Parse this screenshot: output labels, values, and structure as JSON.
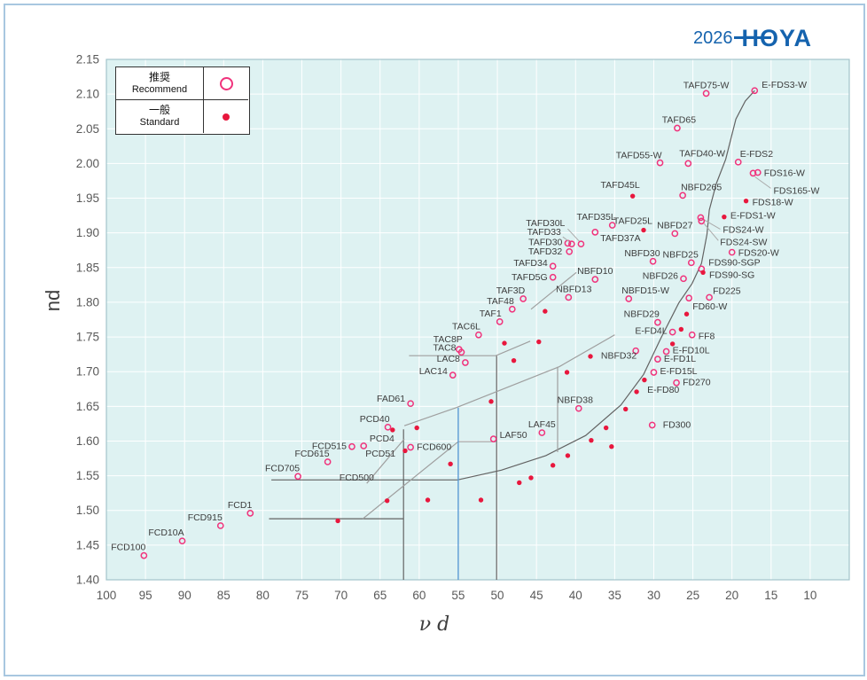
{
  "header": {
    "year": "2026",
    "brand": "HOYA"
  },
  "legend": {
    "recommend_jp": "推奨",
    "recommend_en": "Recommend",
    "standard_jp": "一般",
    "standard_en": "Standard"
  },
  "chart_data": {
    "type": "scatter",
    "xlabel": "ν d",
    "ylabel": "nd",
    "x_axis": {
      "ticks": [
        100,
        95,
        90,
        85,
        80,
        75,
        70,
        65,
        60,
        55,
        50,
        45,
        40,
        35,
        30,
        25,
        20,
        15,
        10
      ],
      "reversed": true,
      "frame_min": 5,
      "frame_max": 100
    },
    "y_axis": {
      "min": 1.4,
      "max": 2.15,
      "step": 0.05
    },
    "grid": true,
    "colors": {
      "plot_bg": "#def2f2",
      "grid": "#ffffff",
      "frame": "#a3c4cb",
      "open": "#f0337c",
      "filled": "#e8173d",
      "dark_line": "#636363",
      "gray_line": "#9f9f9f",
      "blue_line": "#5b9bd5",
      "label": "#3c3c3c",
      "tick": "#595959"
    },
    "series": [
      {
        "name": "Recommend",
        "marker": "open-circle"
      },
      {
        "name": "Standard",
        "marker": "filled-dot"
      }
    ],
    "points": [
      {
        "l": "FCD100",
        "nu": 95.2,
        "nd": 1.435,
        "s": "o",
        "side": "above-left"
      },
      {
        "l": "FCD10A",
        "nu": 90.3,
        "nd": 1.456,
        "s": "o",
        "side": "above-left"
      },
      {
        "l": "FCD915",
        "nu": 85.4,
        "nd": 1.478,
        "s": "o",
        "side": "above-left"
      },
      {
        "l": "FCD1",
        "nu": 81.6,
        "nd": 1.496,
        "s": "o",
        "side": "above-left"
      },
      {
        "l": "FCD705",
        "nu": 75.5,
        "nd": 1.549,
        "s": "o",
        "side": "above-left"
      },
      {
        "l": "FCD615",
        "nu": 71.7,
        "nd": 1.57,
        "s": "o",
        "side": "above-left"
      },
      {
        "l": "FCD515",
        "nu": 68.6,
        "nd": 1.592,
        "s": "o",
        "side": "left"
      },
      {
        "l": "PCD51",
        "nu": 67.1,
        "nd": 1.593,
        "s": "o",
        "side": "below-right"
      },
      {
        "l": "PCD4",
        "nu": 63.4,
        "nd": 1.616,
        "s": "f",
        "side": "below-left"
      },
      {
        "l": "PCD40",
        "nu": 64.0,
        "nd": 1.62,
        "s": "o",
        "side": "above-left"
      },
      {
        "l": "FAD61",
        "nu": 61.1,
        "nd": 1.654,
        "s": "o",
        "side": "left",
        "ly": -2
      },
      {
        "l": "FCD600",
        "nu": 61.1,
        "nd": 1.591,
        "s": "o",
        "side": "right"
      },
      {
        "l": "FCD500",
        "nu": 71.0,
        "nd": 1.547,
        "s": "none",
        "side": "right"
      },
      {
        "l": "LAC14",
        "nu": 55.7,
        "nd": 1.695,
        "s": "o",
        "side": "left",
        "ly": -1
      },
      {
        "l": "LAC8",
        "nu": 54.1,
        "nd": 1.713,
        "s": "o",
        "side": "left",
        "ly": -1
      },
      {
        "l": "TAC8P",
        "nu": 54.9,
        "nd": 1.732,
        "s": "o",
        "an": "end",
        "lx": 4,
        "ly": -8
      },
      {
        "l": "TAC8",
        "nu": 54.6,
        "nd": 1.728,
        "s": "o",
        "side": "left",
        "ly": -2
      },
      {
        "l": "TAC6L",
        "nu": 52.4,
        "nd": 1.753,
        "s": "o",
        "side": "above-left"
      },
      {
        "l": "TAF1",
        "nu": 49.7,
        "nd": 1.772,
        "s": "o",
        "side": "above-left"
      },
      {
        "l": "TAF48",
        "nu": 48.1,
        "nd": 1.79,
        "s": "o",
        "side": "above-left"
      },
      {
        "l": "TAF3D",
        "nu": 46.7,
        "nd": 1.805,
        "s": "o",
        "side": "above-left"
      },
      {
        "l": "TAFD5G",
        "nu": 42.9,
        "nd": 1.836,
        "s": "o",
        "side": "left"
      },
      {
        "l": "TAFD34",
        "nu": 42.9,
        "nd": 1.852,
        "s": "o",
        "side": "left",
        "ly": 0
      },
      {
        "l": "TAFD32",
        "nu": 40.8,
        "nd": 1.873,
        "s": "o",
        "side": "left",
        "lx": -8
      },
      {
        "l": "TAFD30",
        "nu": 41.0,
        "nd": 1.885,
        "s": "o",
        "side": "left",
        "ly": 2
      },
      {
        "l": "TAFD33",
        "nu": 40.5,
        "nd": 1.884,
        "s": "o",
        "an": "end",
        "lx": -12,
        "ly": -10,
        "leader": [
          -10,
          -8,
          -2,
          -2
        ]
      },
      {
        "l": "TAFD30L",
        "nu": 39.3,
        "nd": 1.884,
        "s": "o",
        "an": "end",
        "lx": -18,
        "ly": -20,
        "leader": [
          -15,
          -17,
          -2,
          -3
        ]
      },
      {
        "l": "TAFD35L",
        "nu": 35.3,
        "nd": 1.911,
        "s": "o",
        "side": "above-left",
        "lx": 4
      },
      {
        "l": "TAFD37A",
        "nu": 37.5,
        "nd": 1.901,
        "s": "o",
        "side": "below-right",
        "lx": 6,
        "ly": 10
      },
      {
        "l": "TAFD45L",
        "nu": 32.7,
        "nd": 1.953,
        "s": "f",
        "side": "above-left",
        "lx": 8,
        "ly": -9
      },
      {
        "l": "TAFD25L",
        "nu": 31.3,
        "nd": 1.904,
        "s": "f",
        "side": "above-left",
        "lx": 10,
        "ly": -7
      },
      {
        "l": "NBFD265",
        "nu": 26.3,
        "nd": 1.954,
        "s": "o",
        "side": "above-right"
      },
      {
        "l": "NBFD27",
        "nu": 27.3,
        "nd": 1.899,
        "s": "o",
        "side": "above"
      },
      {
        "l": "NBFD30",
        "nu": 30.1,
        "nd": 1.859,
        "s": "o",
        "side": "above-left",
        "lx": 8
      },
      {
        "l": "NBFD25",
        "nu": 25.2,
        "nd": 1.857,
        "s": "o",
        "side": "above-left",
        "lx": 8
      },
      {
        "l": "FDS90-SGP",
        "nu": 23.9,
        "nd": 1.848,
        "s": "o",
        "an": "start",
        "lx": 8,
        "ly": -4
      },
      {
        "l": "FDS90-SG",
        "nu": 23.7,
        "nd": 1.843,
        "s": "f",
        "side": "right",
        "ly": 6
      },
      {
        "l": "NBFD26",
        "nu": 26.2,
        "nd": 1.834,
        "s": "o",
        "side": "left",
        "ly": 0
      },
      {
        "l": "NBFD10",
        "nu": 37.5,
        "nd": 1.833,
        "s": "o",
        "side": "above"
      },
      {
        "l": "NBFD13",
        "nu": 40.9,
        "nd": 1.807,
        "s": "o",
        "side": "above",
        "lx": 6
      },
      {
        "l": "NBFD15-W",
        "nu": 33.2,
        "nd": 1.805,
        "s": "o",
        "side": "above-right",
        "lx": -8
      },
      {
        "l": "NBFD29",
        "nu": 29.5,
        "nd": 1.771,
        "s": "o",
        "side": "above-left",
        "lx": 2
      },
      {
        "l": "E-FD4L",
        "nu": 27.6,
        "nd": 1.757,
        "s": "o",
        "side": "left",
        "ly": 2
      },
      {
        "l": "FF8",
        "nu": 25.1,
        "nd": 1.753,
        "s": "o",
        "side": "right",
        "ly": 5
      },
      {
        "l": "FD60-W",
        "nu": 25.5,
        "nd": 1.806,
        "s": "o",
        "side": "below-right",
        "lx": 4,
        "ly": 13
      },
      {
        "l": "FD225",
        "nu": 22.9,
        "nd": 1.807,
        "s": "o",
        "side": "above-right",
        "lx": 4,
        "ly": -4
      },
      {
        "l": "E-FD10L",
        "nu": 28.4,
        "nd": 1.729,
        "s": "o",
        "side": "right",
        "ly": 2
      },
      {
        "l": "E-FD1L",
        "nu": 29.5,
        "nd": 1.718,
        "s": "o",
        "side": "right",
        "ly": 3
      },
      {
        "l": "E-FD15L",
        "nu": 30.0,
        "nd": 1.699,
        "s": "o",
        "side": "right",
        "ly": 2
      },
      {
        "l": "FD270",
        "nu": 27.1,
        "nd": 1.684,
        "s": "o",
        "side": "right",
        "ly": 3
      },
      {
        "l": "E-FD80",
        "nu": 32.2,
        "nd": 1.671,
        "s": "f",
        "side": "right",
        "lx": 12,
        "ly": 1
      },
      {
        "l": "NBFD32",
        "nu": 32.3,
        "nd": 1.73,
        "s": "o",
        "an": "end",
        "lx": 1,
        "ly": 9
      },
      {
        "l": "NBFD38",
        "nu": 39.6,
        "nd": 1.647,
        "s": "o",
        "side": "above",
        "lx": -4
      },
      {
        "l": "FD300",
        "nu": 30.2,
        "nd": 1.623,
        "s": "o",
        "side": "right",
        "lx": 12,
        "ly": 3
      },
      {
        "l": "LAF45",
        "nu": 44.3,
        "nd": 1.612,
        "s": "o",
        "side": "above"
      },
      {
        "l": "LAF50",
        "nu": 50.5,
        "nd": 1.603,
        "s": "o",
        "side": "right",
        "ly": -1
      },
      {
        "l": "TAFD55-W",
        "nu": 29.2,
        "nd": 2.001,
        "s": "o",
        "side": "above-left",
        "lx": 2,
        "ly": -5
      },
      {
        "l": "TAFD40-W",
        "nu": 25.6,
        "nd": 2.0,
        "s": "o",
        "side": "above-right",
        "lx": -10,
        "ly": -8
      },
      {
        "l": "TAFD65",
        "nu": 27.0,
        "nd": 2.051,
        "s": "o",
        "side": "above",
        "lx": 2
      },
      {
        "l": "TAFD75-W",
        "nu": 23.3,
        "nd": 2.101,
        "s": "o",
        "side": "above"
      },
      {
        "l": "E-FDS3-W",
        "nu": 17.1,
        "nd": 2.105,
        "s": "o",
        "an": "start",
        "lx": 8,
        "ly": -3
      },
      {
        "l": "E-FDS2",
        "nu": 19.2,
        "nd": 2.002,
        "s": "o",
        "side": "above-right",
        "lx": 2,
        "ly": -6
      },
      {
        "l": "FDS16-W",
        "nu": 16.7,
        "nd": 1.987,
        "s": "o",
        "side": "right",
        "ly": 4
      },
      {
        "l": "FDS165-W",
        "nu": 17.3,
        "nd": 1.986,
        "s": "o",
        "an": "start",
        "lx": 23,
        "ly": 23,
        "leader": [
          20,
          17,
          2,
          4
        ]
      },
      {
        "l": "FDS18-W",
        "nu": 18.2,
        "nd": 1.946,
        "s": "f",
        "side": "right",
        "ly": 5
      },
      {
        "l": "E-FDS1-W",
        "nu": 21.0,
        "nd": 1.923,
        "s": "f",
        "side": "right",
        "ly": 2
      },
      {
        "l": "FDS24-W",
        "nu": 24.0,
        "nd": 1.922,
        "s": "o",
        "an": "start",
        "lx": 25,
        "ly": 17,
        "leader": [
          22,
          13,
          3,
          2
        ]
      },
      {
        "l": "FDS24-SW",
        "nu": 23.9,
        "nd": 1.917,
        "s": "o",
        "an": "start",
        "lx": 21,
        "ly": 27,
        "leader": [
          19,
          22,
          3,
          3
        ]
      },
      {
        "l": "FDS20-W",
        "nu": 20.0,
        "nd": 1.872,
        "s": "o",
        "side": "right",
        "ly": 4
      },
      {
        "l": "",
        "nu": 70.4,
        "nd": 1.485,
        "s": "f"
      },
      {
        "l": "",
        "nu": 64.1,
        "nd": 1.514,
        "s": "f"
      },
      {
        "l": "",
        "nu": 58.9,
        "nd": 1.515,
        "s": "f"
      },
      {
        "l": "",
        "nu": 52.1,
        "nd": 1.515,
        "s": "f"
      },
      {
        "l": "",
        "nu": 47.2,
        "nd": 1.54,
        "s": "f"
      },
      {
        "l": "",
        "nu": 45.7,
        "nd": 1.547,
        "s": "f"
      },
      {
        "l": "",
        "nu": 56.0,
        "nd": 1.567,
        "s": "f"
      },
      {
        "l": "",
        "nu": 61.8,
        "nd": 1.586,
        "s": "f"
      },
      {
        "l": "",
        "nu": 60.3,
        "nd": 1.619,
        "s": "f"
      },
      {
        "l": "",
        "nu": 42.9,
        "nd": 1.565,
        "s": "f"
      },
      {
        "l": "",
        "nu": 41.0,
        "nd": 1.579,
        "s": "f"
      },
      {
        "l": "",
        "nu": 38.0,
        "nd": 1.601,
        "s": "f"
      },
      {
        "l": "",
        "nu": 35.4,
        "nd": 1.592,
        "s": "f"
      },
      {
        "l": "",
        "nu": 36.1,
        "nd": 1.619,
        "s": "f"
      },
      {
        "l": "",
        "nu": 33.6,
        "nd": 1.646,
        "s": "f"
      },
      {
        "l": "",
        "nu": 31.2,
        "nd": 1.688,
        "s": "f"
      },
      {
        "l": "",
        "nu": 27.6,
        "nd": 1.74,
        "s": "f"
      },
      {
        "l": "",
        "nu": 26.5,
        "nd": 1.761,
        "s": "f"
      },
      {
        "l": "",
        "nu": 25.8,
        "nd": 1.783,
        "s": "f"
      },
      {
        "l": "",
        "nu": 50.8,
        "nd": 1.657,
        "s": "f"
      },
      {
        "l": "",
        "nu": 49.1,
        "nd": 1.741,
        "s": "f"
      },
      {
        "l": "",
        "nu": 44.7,
        "nd": 1.743,
        "s": "f"
      },
      {
        "l": "",
        "nu": 47.9,
        "nd": 1.716,
        "s": "f"
      },
      {
        "l": "",
        "nu": 41.1,
        "nd": 1.699,
        "s": "f"
      },
      {
        "l": "",
        "nu": 38.1,
        "nd": 1.722,
        "s": "f"
      },
      {
        "l": "",
        "nu": 43.9,
        "nd": 1.787,
        "s": "f"
      }
    ],
    "lines": [
      {
        "c": "dark",
        "pts": [
          [
            78.9,
            1.544
          ],
          [
            55.1,
            1.544
          ],
          [
            49.5,
            1.558
          ],
          [
            43.8,
            1.579
          ],
          [
            38.7,
            1.608
          ],
          [
            34.2,
            1.652
          ],
          [
            31.3,
            1.696
          ],
          [
            29.1,
            1.748
          ],
          [
            26.8,
            1.799
          ],
          [
            25.1,
            1.827
          ],
          [
            23.9,
            1.856
          ],
          [
            23.2,
            1.898
          ],
          [
            22.9,
            1.933
          ],
          [
            22.0,
            1.971
          ],
          [
            20.8,
            2.006
          ],
          [
            19.5,
            2.064
          ],
          [
            18.3,
            2.09
          ],
          [
            17.1,
            2.105
          ]
        ]
      },
      {
        "c": "dark",
        "pts": [
          [
            79.2,
            1.488
          ],
          [
            62.0,
            1.488
          ]
        ]
      },
      {
        "c": "dark",
        "pts": [
          [
            62.0,
            1.617
          ],
          [
            62.0,
            1.4
          ]
        ]
      },
      {
        "c": "dark",
        "pts": [
          [
            50.1,
            1.723
          ],
          [
            50.1,
            1.4
          ]
        ]
      },
      {
        "c": "gray",
        "pts": [
          [
            42.3,
            1.707
          ],
          [
            42.3,
            1.584
          ]
        ]
      },
      {
        "c": "gray",
        "pts": [
          [
            61.9,
            1.622
          ],
          [
            55.3,
            1.648
          ],
          [
            42.1,
            1.707
          ],
          [
            35.0,
            1.753
          ]
        ]
      },
      {
        "c": "gray",
        "pts": [
          [
            61.3,
            1.723
          ],
          [
            50.2,
            1.723
          ],
          [
            45.8,
            1.744
          ]
        ]
      },
      {
        "c": "gray",
        "pts": [
          [
            45.7,
            1.79
          ],
          [
            39.9,
            1.843
          ]
        ]
      },
      {
        "c": "gray",
        "pts": [
          [
            67.2,
            1.488
          ],
          [
            55.0,
            1.599
          ],
          [
            50.2,
            1.599
          ]
        ]
      },
      {
        "c": "gray",
        "pts": [
          [
            61.9,
            1.603
          ],
          [
            66.7,
            1.539
          ]
        ]
      },
      {
        "c": "blue",
        "pts": [
          [
            55.0,
            1.648
          ],
          [
            55.0,
            1.4
          ]
        ]
      }
    ]
  }
}
